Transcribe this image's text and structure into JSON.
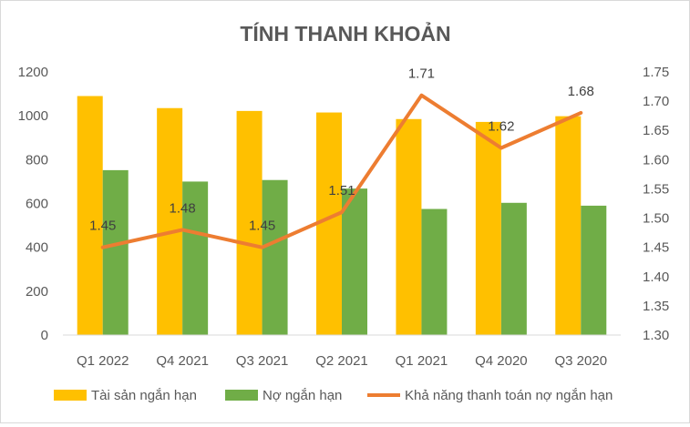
{
  "chart_data": {
    "type": "bar",
    "title": "TÍNH THANH KHOẢN",
    "categories": [
      "Q1 2022",
      "Q4 2021",
      "Q3 2021",
      "Q2 2021",
      "Q1 2021",
      "Q4 2020",
      "Q3 2020"
    ],
    "series": [
      {
        "name": "Tài sản ngắn hạn",
        "type": "bar",
        "axis": "left",
        "color": "#FFC000",
        "values": [
          1090,
          1035,
          1022,
          1015,
          985,
          972,
          998
        ]
      },
      {
        "name": "Nợ ngắn hạn",
        "type": "bar",
        "axis": "left",
        "color": "#70AD47",
        "values": [
          752,
          700,
          707,
          668,
          575,
          603,
          590
        ]
      },
      {
        "name": "Khả năng thanh toán nợ ngắn hạn",
        "type": "line",
        "axis": "right",
        "color": "#ED7D31",
        "values": [
          1.45,
          1.48,
          1.45,
          1.51,
          1.71,
          1.62,
          1.68
        ],
        "labels": [
          "1.45",
          "1.48",
          "1.45",
          "1.51",
          "1.71",
          "1.62",
          "1.68"
        ]
      }
    ],
    "y_left": {
      "min": 0,
      "max": 1200,
      "ticks": [
        "0",
        "200",
        "400",
        "600",
        "800",
        "1000",
        "1200"
      ]
    },
    "y_right": {
      "min": 1.3,
      "max": 1.75,
      "ticks": [
        "1.30",
        "1.35",
        "1.40",
        "1.45",
        "1.50",
        "1.55",
        "1.60",
        "1.65",
        "1.70",
        "1.75"
      ]
    },
    "grid": false,
    "legend_position": "bottom"
  }
}
